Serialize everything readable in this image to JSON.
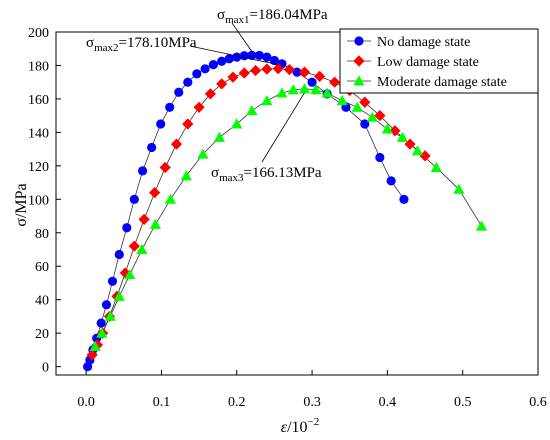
{
  "chart_data": {
    "type": "scatter",
    "title": "",
    "xlabel": {
      "symbol": "ε",
      "unit": "/10",
      "exponent": "−2"
    },
    "ylabel": "σ/MPa",
    "xlim": [
      -0.04,
      0.6
    ],
    "ylim": [
      -5,
      200
    ],
    "xticks": [
      0.0,
      0.1,
      0.2,
      0.3,
      0.4,
      0.5,
      0.6
    ],
    "xtick_labels": [
      "0.0",
      "0.1",
      "0.2",
      "0.3",
      "0.4",
      "0.5",
      "0.6"
    ],
    "yticks": [
      0,
      20,
      40,
      60,
      80,
      100,
      120,
      140,
      160,
      180,
      200
    ],
    "ytick_labels": [
      "0",
      "20",
      "40",
      "60",
      "80",
      "100",
      "120",
      "140",
      "160",
      "180",
      "200"
    ],
    "grid": false,
    "legend_position": "top-right",
    "series": [
      {
        "name": "No damage state",
        "marker": "circle",
        "color": "#0000ff",
        "x": [
          0.002,
          0.005,
          0.009,
          0.014,
          0.02,
          0.027,
          0.035,
          0.044,
          0.054,
          0.064,
          0.075,
          0.087,
          0.099,
          0.111,
          0.123,
          0.135,
          0.147,
          0.158,
          0.169,
          0.18,
          0.19,
          0.2,
          0.21,
          0.22,
          0.23,
          0.24,
          0.25,
          0.26,
          0.28,
          0.3,
          0.32,
          0.345,
          0.37,
          0.39,
          0.405,
          0.422
        ],
        "y": [
          0,
          4,
          10,
          17,
          26,
          37,
          51,
          67,
          83,
          100,
          117,
          131,
          145,
          155,
          164,
          170,
          175,
          178,
          180.5,
          182.5,
          184,
          185,
          185.8,
          186.04,
          186,
          185,
          183,
          181,
          176,
          170,
          163,
          155,
          145,
          125,
          111,
          100
        ]
      },
      {
        "name": "Low damage state",
        "marker": "diamond",
        "color": "#ff0000",
        "x": [
          0.008,
          0.015,
          0.022,
          0.031,
          0.041,
          0.052,
          0.064,
          0.077,
          0.091,
          0.105,
          0.12,
          0.135,
          0.15,
          0.165,
          0.18,
          0.195,
          0.21,
          0.225,
          0.24,
          0.255,
          0.27,
          0.29,
          0.31,
          0.33,
          0.35,
          0.37,
          0.39,
          0.41,
          0.43,
          0.45
        ],
        "y": [
          7,
          13,
          20,
          30,
          42,
          56,
          72,
          88,
          104,
          119,
          133,
          145,
          155,
          163,
          169,
          173,
          175.5,
          177,
          177.8,
          178.1,
          177.5,
          176,
          173.5,
          170,
          165,
          158,
          150,
          141,
          133,
          126
        ]
      },
      {
        "name": "Moderate damage state",
        "marker": "triangle",
        "color": "#00ff00",
        "x": [
          0.012,
          0.021,
          0.032,
          0.044,
          0.058,
          0.074,
          0.092,
          0.112,
          0.133,
          0.155,
          0.177,
          0.2,
          0.22,
          0.24,
          0.26,
          0.275,
          0.29,
          0.305,
          0.32,
          0.34,
          0.36,
          0.38,
          0.4,
          0.42,
          0.44,
          0.465,
          0.495,
          0.525
        ],
        "y": [
          12,
          20,
          30,
          42,
          55,
          70,
          85,
          100,
          114,
          127,
          137,
          145,
          153,
          159,
          163.5,
          165.5,
          166.1,
          165.5,
          163.5,
          159,
          155,
          149,
          142,
          137,
          129,
          119,
          106,
          84
        ]
      }
    ],
    "annotations": [
      {
        "base": "σ",
        "sub": "max1",
        "value": "=186.04MPa"
      },
      {
        "base": "σ",
        "sub": "max2",
        "value": "=178.10MPa"
      },
      {
        "base": "σ",
        "sub": "max3",
        "value": "=166.13MPa"
      }
    ]
  }
}
